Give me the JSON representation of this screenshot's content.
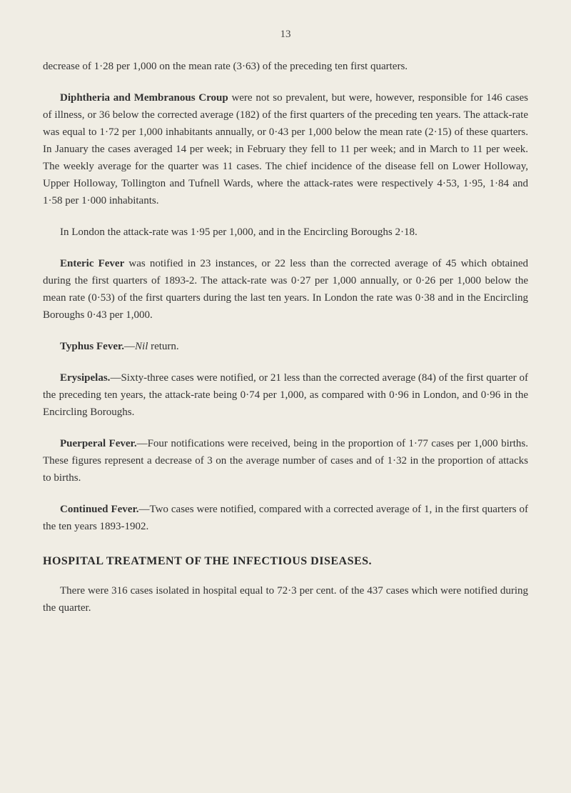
{
  "page_number": "13",
  "paragraphs": {
    "p1": "decrease of 1·28 per 1,000 on the mean rate (3·63) of the preceding ten first quarters.",
    "p2_lead": "Diphtheria and Membranous Croup",
    "p2_rest": " were not so prevalent, but were, however, responsible for 146 cases of illness, or 36 below the corrected average (182) of the first quarters of the preceding ten years. The attack-rate was equal to 1·72 per 1,000 inhabitants annually, or 0·43 per 1,000 below the mean rate (2·15) of these quarters. In January the cases averaged 14 per week; in February they fell to 11 per week; and in March to 11 per week. The weekly average for the quarter was 11 cases. The chief incidence of the disease fell on Lower Holloway, Upper Holloway, Tollington and Tufnell Wards, where the attack-rates were respectively 4·53, 1·95, 1·84 and 1·58 per 1·000 inhabitants.",
    "p3": "In London the attack-rate was 1·95 per 1,000, and in the Encircling Boroughs 2·18.",
    "p4_lead": "Enteric Fever",
    "p4_rest": " was notified in 23 instances, or 22 less than the corrected average of 45 which obtained during the first quarters of 1893-2. The attack-rate was 0·27 per 1,000 annually, or 0·26 per 1,000 below the mean rate (0·53) of the first quarters during the last ten years. In London the rate was 0·38 and in the Encircling Boroughs 0·43 per 1,000.",
    "p5_lead": "Typhus Fever.",
    "p5_mid": "Nil",
    "p5_rest": " return.",
    "p6_lead": "Erysipelas.",
    "p6_rest": "—Sixty-three cases were notified, or 21 less than the corrected average (84) of the first quarter of the preceding ten years, the attack-rate being 0·74 per 1,000, as compared with 0·96 in London, and 0·96 in the Encircling Boroughs.",
    "p7_lead": "Puerperal Fever.",
    "p7_rest": "—Four notifications were received, being in the proportion of 1·77 cases per 1,000 births. These figures represent a decrease of 3 on the average number of cases and of 1·32 in the proportion of attacks to births.",
    "p8_lead": "Continued Fever.",
    "p8_rest": "—Two cases were notified, compared with a corrected average of 1, in the first quarters of the ten years 1893-1902.",
    "heading": "HOSPITAL TREATMENT OF THE INFECTIOUS DISEASES.",
    "p9": "There were 316 cases isolated in hospital equal to 72·3 per cent. of the 437 cases which were notified during the quarter."
  },
  "styling": {
    "background_color": "#f0ede4",
    "text_color": "#333333",
    "font_family": "Georgia, serif",
    "body_font_size": 15,
    "heading_font_size": 16,
    "line_height": 1.6,
    "page_padding": "40px 60px 50px 60px"
  }
}
